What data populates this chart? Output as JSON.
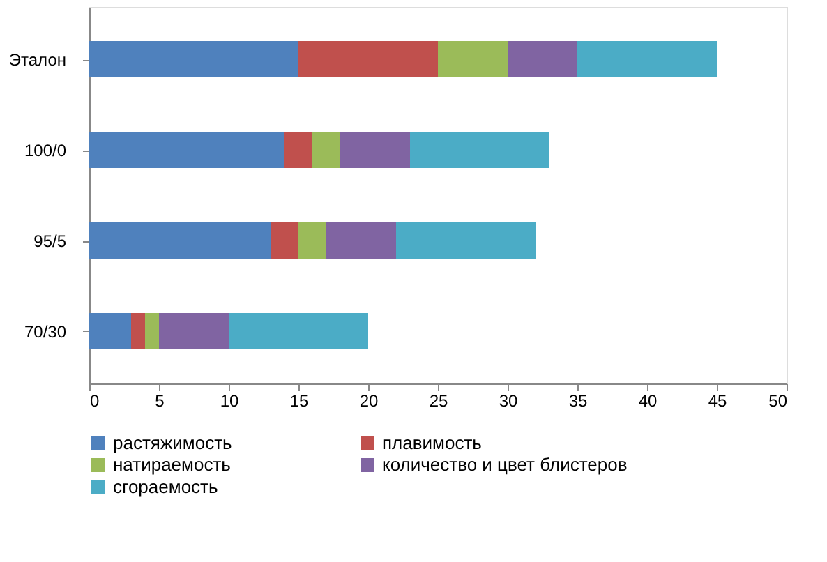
{
  "chart_data": {
    "type": "bar",
    "orientation": "horizontal",
    "stacked": true,
    "categories": [
      "Эталон",
      "100/0",
      "95/5",
      "70/30"
    ],
    "series": [
      {
        "name": "растяжимость",
        "color": "#4f81bd",
        "values": [
          15,
          14,
          13,
          3
        ]
      },
      {
        "name": "плавимость",
        "color": "#c0504d",
        "values": [
          10,
          2,
          2,
          1
        ]
      },
      {
        "name": "натираемость",
        "color": "#9bbb59",
        "values": [
          5,
          2,
          2,
          1
        ]
      },
      {
        "name": "количество и цвет блистеров",
        "color": "#8064a2",
        "values": [
          5,
          5,
          5,
          5
        ]
      },
      {
        "name": "сгораемость",
        "color": "#4bacc6",
        "values": [
          10,
          10,
          10,
          10
        ]
      }
    ],
    "xlim": [
      0,
      50
    ],
    "xticks": [
      0,
      5,
      10,
      15,
      20,
      25,
      30,
      35,
      40,
      45,
      50
    ],
    "grid": false,
    "legend": "bottom"
  }
}
